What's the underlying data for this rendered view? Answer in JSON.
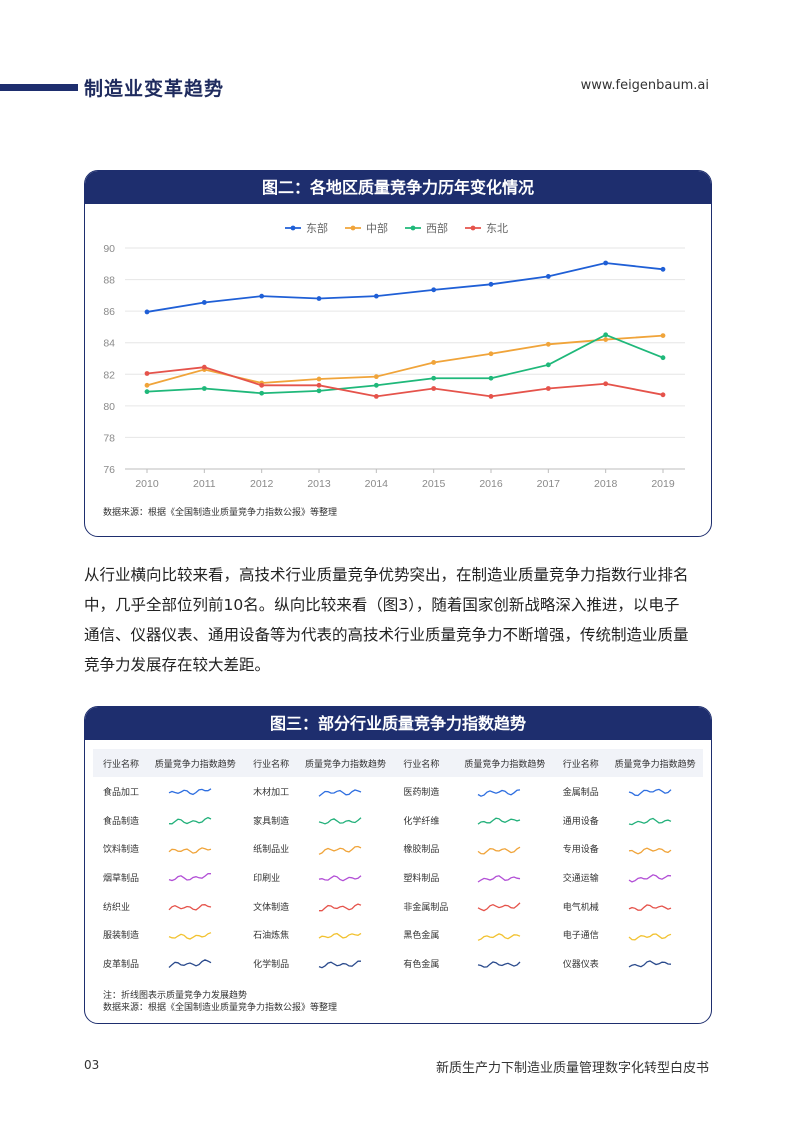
{
  "header": {
    "title": "制造业变革趋势",
    "url": "www.feigenbaum.ai"
  },
  "figure2": {
    "heading": "图二：各地区质量竞争力历年变化情况",
    "source": "数据来源：根据《全国制造业质量竞争力指数公报》等整理"
  },
  "chart_data": {
    "type": "line",
    "title": "",
    "x": [
      "2010",
      "2011",
      "2012",
      "2013",
      "2014",
      "2015",
      "2016",
      "2017",
      "2018",
      "2019"
    ],
    "ylim": [
      76,
      90
    ],
    "yticks": [
      76,
      78,
      80,
      82,
      84,
      86,
      88,
      90
    ],
    "grid": true,
    "legend": "top-center",
    "series": [
      {
        "name": "东部",
        "color": "#1f5fd6",
        "values": [
          85.95,
          86.55,
          86.95,
          86.8,
          86.95,
          87.35,
          87.7,
          88.2,
          89.05,
          88.65
        ]
      },
      {
        "name": "中部",
        "color": "#f0a43a",
        "values": [
          81.3,
          82.3,
          81.45,
          81.7,
          81.85,
          82.75,
          83.3,
          83.9,
          84.2,
          84.45
        ]
      },
      {
        "name": "西部",
        "color": "#1fb87a",
        "values": [
          80.9,
          81.1,
          80.8,
          80.95,
          81.3,
          81.75,
          81.75,
          82.6,
          84.5,
          83.05
        ]
      },
      {
        "name": "东北",
        "color": "#e5534b",
        "values": [
          82.05,
          82.45,
          81.3,
          81.3,
          80.6,
          81.1,
          80.6,
          81.1,
          81.4,
          80.7
        ]
      }
    ]
  },
  "paragraph": {
    "lines": [
      "从行业横向比较来看，高技术行业质量竞争优势突出，在制造业质量竞争力指数行业排名",
      "中，几乎全部位列前10名。纵向比较来看（图3），随着国家创新战略深入推进，以电子",
      "通信、仪器仪表、通用设备等为代表的高技术行业质量竞争力不断增强，传统制造业质量",
      "竞争力发展存在较大差距。"
    ]
  },
  "figure3": {
    "heading": "图三：部分行业质量竞争力指数趋势",
    "col_name": "行业名称",
    "col_trend": "质量竞争力指数趋势",
    "row_colors": [
      "#2f6fe0",
      "#22b07a",
      "#f0a43a",
      "#b24fd6",
      "#e5534b",
      "#f2c230",
      "#2a4a8c"
    ],
    "rows": [
      [
        "食品加工",
        "木材加工",
        "医药制造",
        "金属制品"
      ],
      [
        "食品制造",
        "家具制造",
        "化学纤维",
        "通用设备"
      ],
      [
        "饮料制造",
        "纸制品业",
        "橡胶制品",
        "专用设备"
      ],
      [
        "烟草制品",
        "印刷业",
        "塑料制品",
        "交通运输"
      ],
      [
        "纺织业",
        "文体制造",
        "非金属制品",
        "电气机械"
      ],
      [
        "服装制造",
        "石油炼焦",
        "黑色金属",
        "电子通信"
      ],
      [
        "皮革制品",
        "化学制品",
        "有色金属",
        "仪器仪表"
      ]
    ],
    "note": "注：折线图表示质量竞争力发展趋势",
    "source": "数据来源：根据《全国制造业质量竞争力指数公报》等整理"
  },
  "footer": {
    "page": "03",
    "title": "新质生产力下制造业质量管理数字化转型白皮书"
  }
}
